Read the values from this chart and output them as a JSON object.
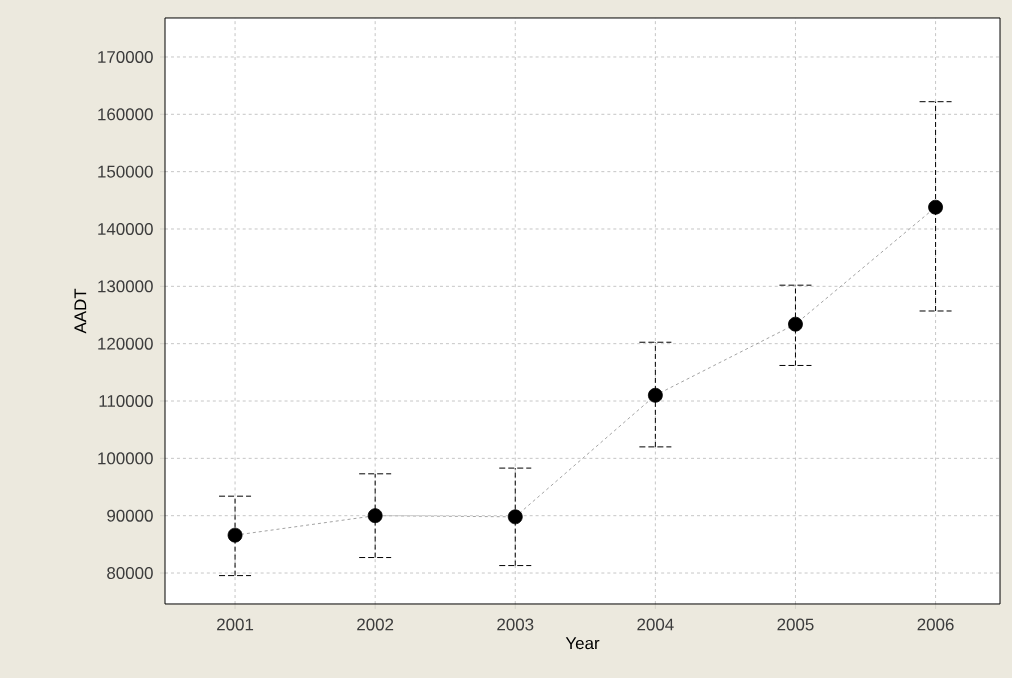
{
  "chart_data": {
    "type": "line",
    "xlabel": "Year",
    "ylabel": "AADT",
    "categories": [
      "2001",
      "2002",
      "2003",
      "2004",
      "2005",
      "2006"
    ],
    "series": [
      {
        "color": "#000000",
        "values": [
          86600,
          90000,
          89800,
          111000,
          123400,
          143800
        ],
        "errors": [
          [
            79550,
            93400
          ],
          [
            82700,
            97300
          ],
          [
            81300,
            98300
          ],
          [
            102000,
            120250
          ],
          [
            116200,
            130200
          ],
          [
            125700,
            162200
          ]
        ]
      }
    ],
    "ylim": [
      74600,
      176800
    ],
    "yticks": [
      80000,
      90000,
      100000,
      110000,
      120000,
      130000,
      140000,
      150000,
      160000,
      170000
    ],
    "grid": true,
    "marker": "circle",
    "line_style": "dashed"
  }
}
